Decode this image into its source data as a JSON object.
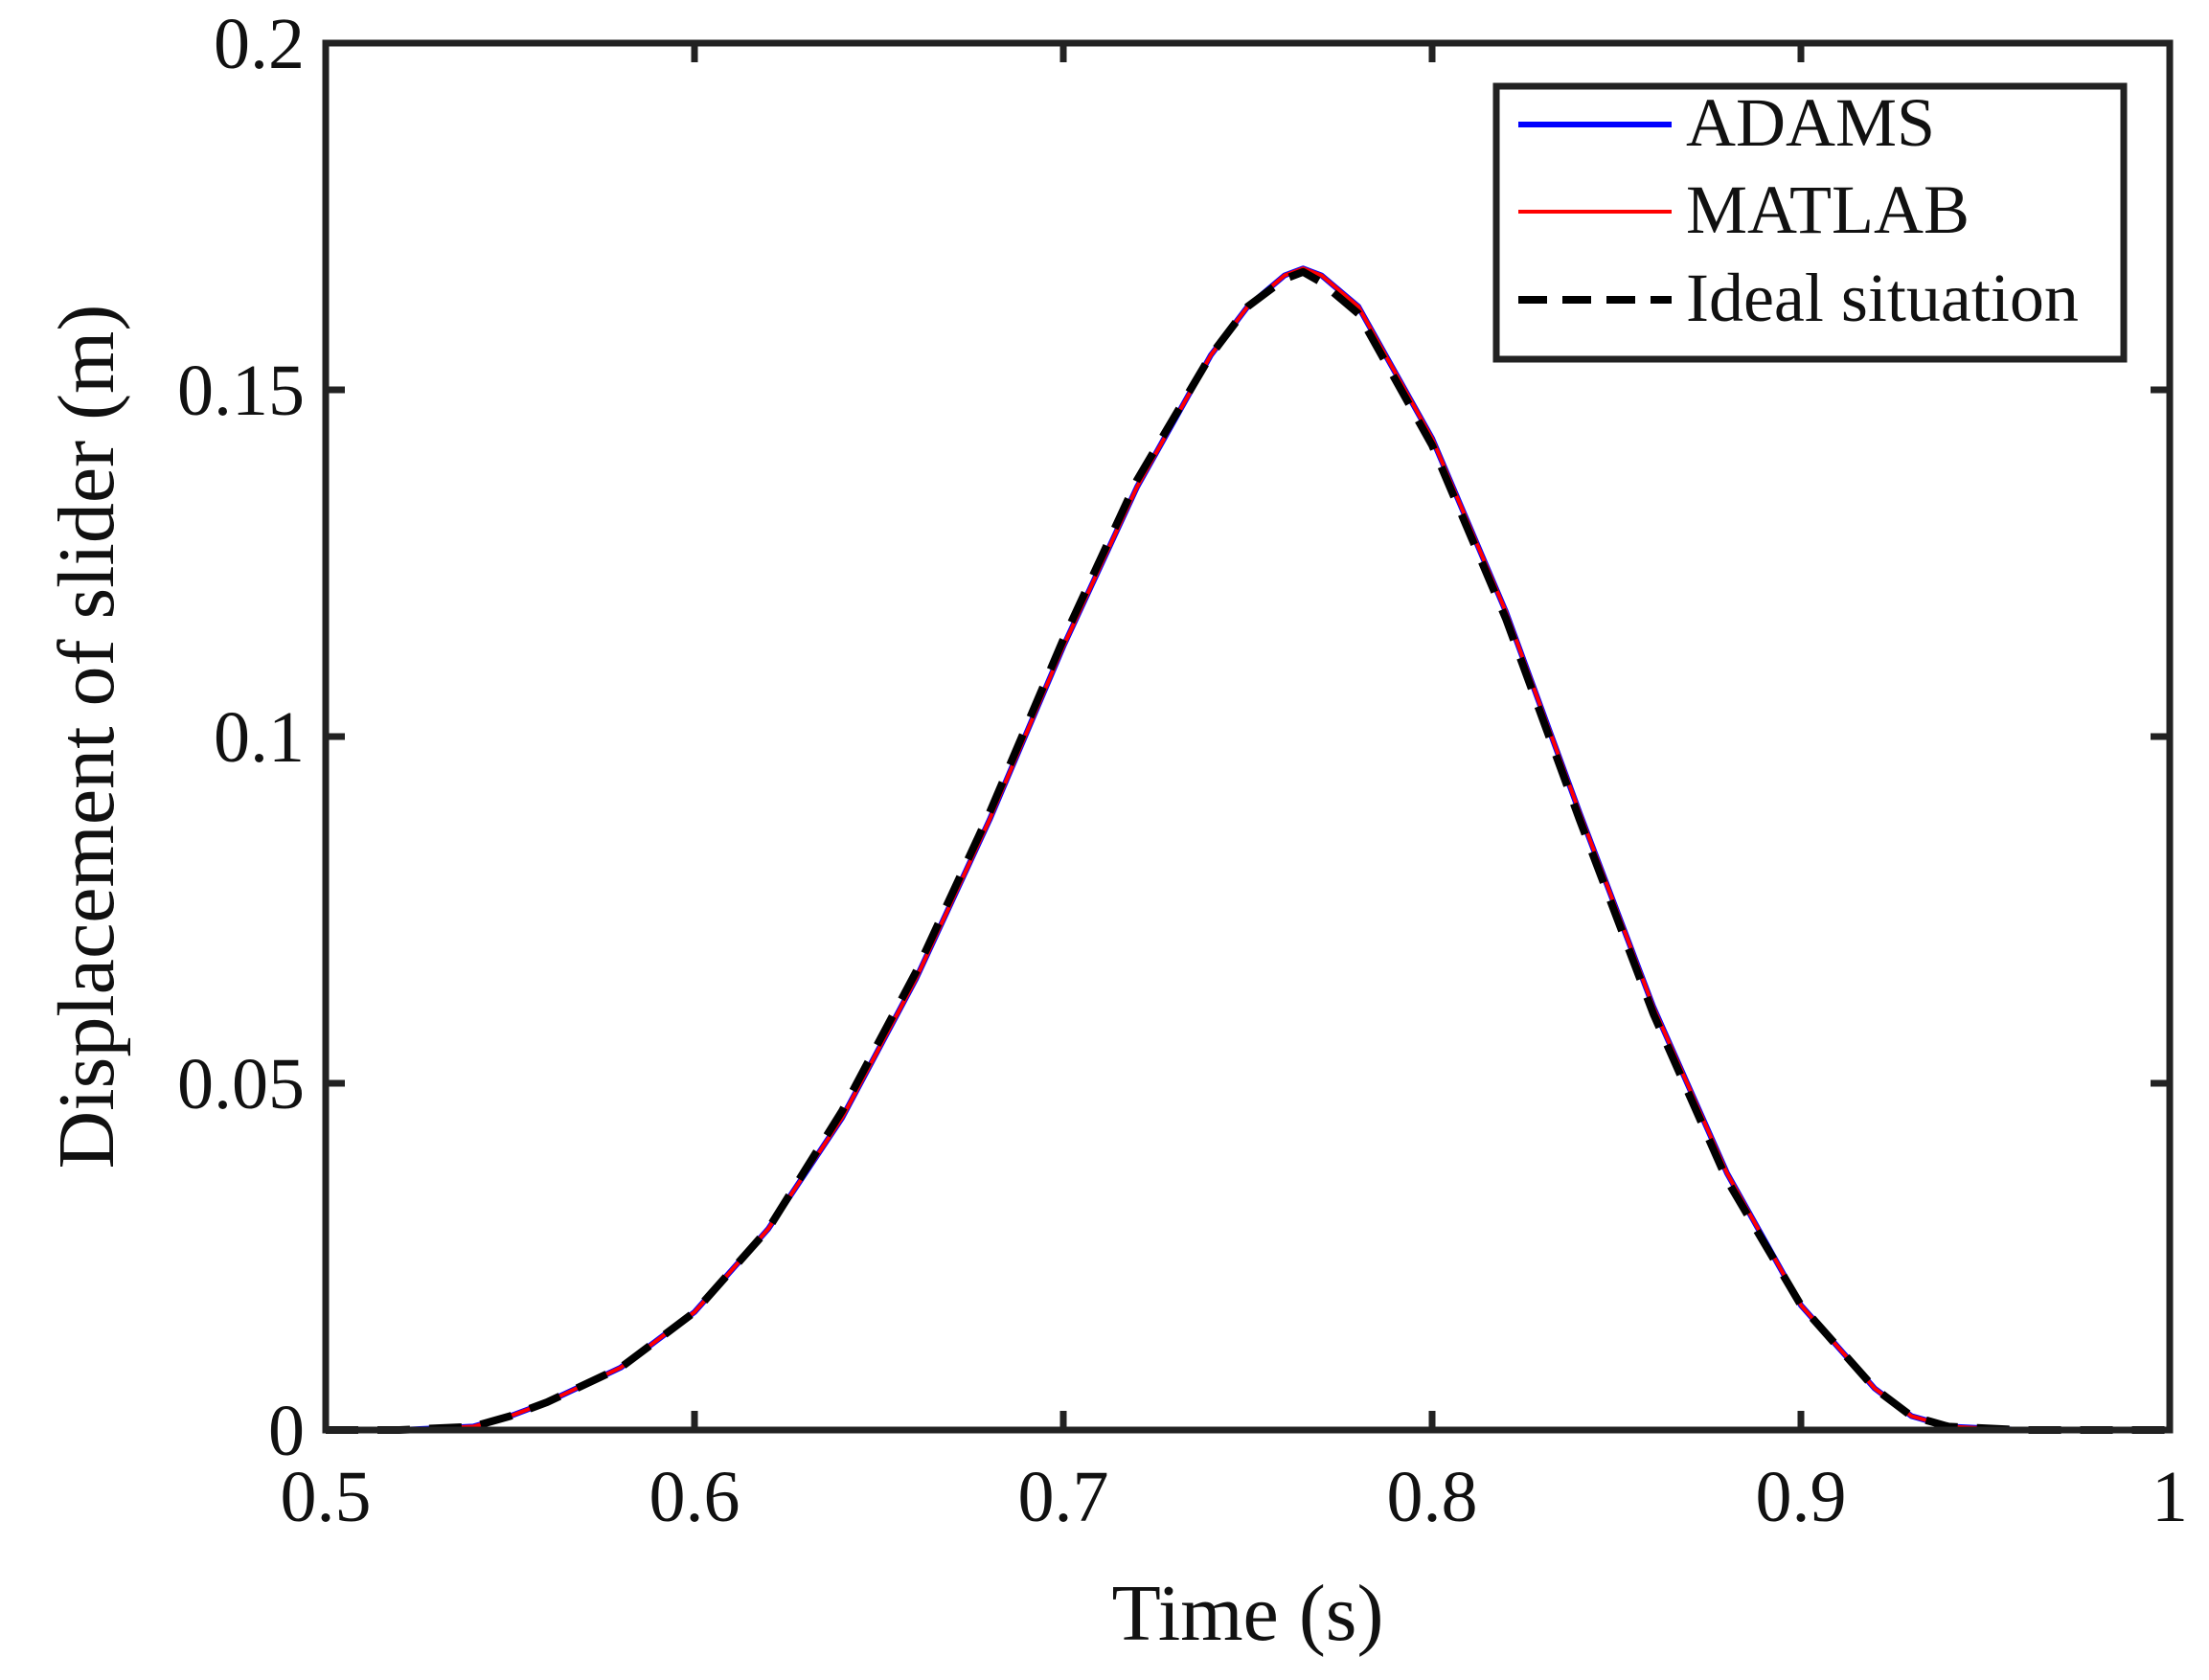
{
  "chart_data": {
    "type": "line",
    "title": "",
    "xlabel": "Time (s)",
    "ylabel": "Displacement of slider (m)",
    "xlim": [
      0.5,
      1.0
    ],
    "ylim": [
      0,
      0.2
    ],
    "xticks": [
      0.5,
      0.6,
      0.7,
      0.8,
      0.9,
      1.0
    ],
    "xtick_labels": [
      "0.5",
      "0.6",
      "0.7",
      "0.8",
      "0.9",
      "1"
    ],
    "yticks": [
      0,
      0.05,
      0.1,
      0.15,
      0.2
    ],
    "ytick_labels": [
      "0",
      "0.05",
      "0.1",
      "0.15",
      "0.2"
    ],
    "grid": false,
    "legend_position": "top-right",
    "x": [
      0.5,
      0.52,
      0.54,
      0.55,
      0.56,
      0.58,
      0.6,
      0.62,
      0.64,
      0.66,
      0.68,
      0.7,
      0.72,
      0.74,
      0.75,
      0.76,
      0.765,
      0.77,
      0.78,
      0.8,
      0.82,
      0.84,
      0.86,
      0.88,
      0.9,
      0.92,
      0.93,
      0.94,
      0.96,
      1.0
    ],
    "series": [
      {
        "name": "ADAMS",
        "color": "#0000ff",
        "style": "solid",
        "values": [
          0.0,
          0.0,
          0.0005,
          0.002,
          0.004,
          0.009,
          0.017,
          0.029,
          0.045,
          0.065,
          0.088,
          0.113,
          0.136,
          0.155,
          0.162,
          0.1665,
          0.1675,
          0.1665,
          0.162,
          0.143,
          0.118,
          0.089,
          0.061,
          0.037,
          0.018,
          0.006,
          0.002,
          0.0005,
          0.0,
          0.0
        ]
      },
      {
        "name": "MATLAB",
        "color": "#ff0000",
        "style": "solid",
        "values": [
          0.0,
          0.0,
          0.0005,
          0.002,
          0.004,
          0.009,
          0.017,
          0.029,
          0.045,
          0.065,
          0.088,
          0.113,
          0.136,
          0.155,
          0.162,
          0.1665,
          0.1675,
          0.1665,
          0.162,
          0.143,
          0.118,
          0.089,
          0.061,
          0.037,
          0.018,
          0.006,
          0.002,
          0.0005,
          0.0,
          0.0
        ]
      },
      {
        "name": "Ideal situation",
        "color": "#000000",
        "style": "dashed",
        "values": [
          0.0,
          0.0,
          0.0005,
          0.002,
          0.004,
          0.009,
          0.017,
          0.029,
          0.046,
          0.066,
          0.089,
          0.114,
          0.137,
          0.155,
          0.162,
          0.166,
          0.167,
          0.1655,
          0.161,
          0.142,
          0.117,
          0.088,
          0.06,
          0.036,
          0.018,
          0.006,
          0.002,
          0.0005,
          0.0,
          0.0
        ]
      }
    ]
  }
}
